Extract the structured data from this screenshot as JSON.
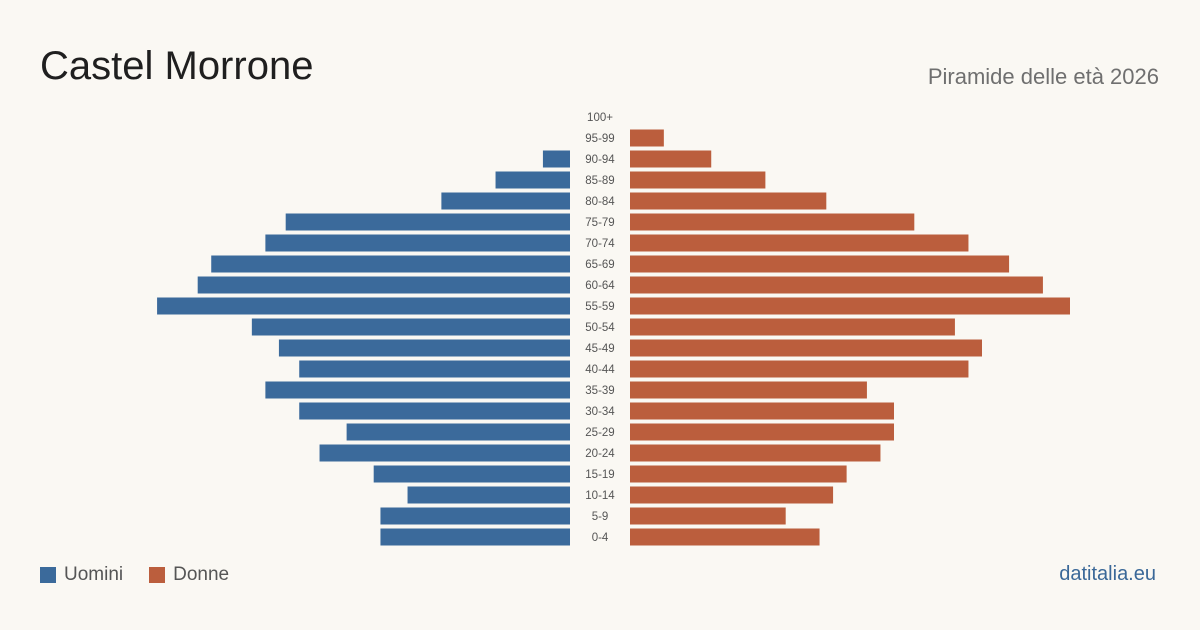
{
  "header": {
    "title": "Castel Morrone",
    "subtitle": "Piramide delle età 2026"
  },
  "legend": {
    "men_label": "Uomini",
    "women_label": "Donne"
  },
  "footer": {
    "source": "datitalia.eu"
  },
  "colors": {
    "men": "#3b6a9b",
    "women": "#bb5e3d",
    "tick_label": "#555555"
  },
  "chart_data": {
    "type": "bar",
    "orientation": "horizontal-pyramid",
    "categories": [
      "100+",
      "95-99",
      "90-94",
      "85-89",
      "80-84",
      "75-79",
      "70-74",
      "65-69",
      "60-64",
      "55-59",
      "50-54",
      "45-49",
      "40-44",
      "35-39",
      "30-34",
      "25-29",
      "20-24",
      "15-19",
      "10-14",
      "5-9",
      "0-4"
    ],
    "series": [
      {
        "name": "Uomini",
        "values": [
          0,
          0,
          4,
          11,
          19,
          42,
          45,
          53,
          55,
          61,
          47,
          43,
          40,
          45,
          40,
          33,
          37,
          29,
          24,
          28,
          28
        ]
      },
      {
        "name": "Donne",
        "values": [
          0,
          5,
          12,
          20,
          29,
          42,
          50,
          56,
          61,
          65,
          48,
          52,
          50,
          35,
          39,
          39,
          37,
          32,
          30,
          23,
          28
        ]
      }
    ],
    "xlim": [
      0,
      65
    ],
    "grid": false,
    "legend_position": "bottom-left"
  }
}
